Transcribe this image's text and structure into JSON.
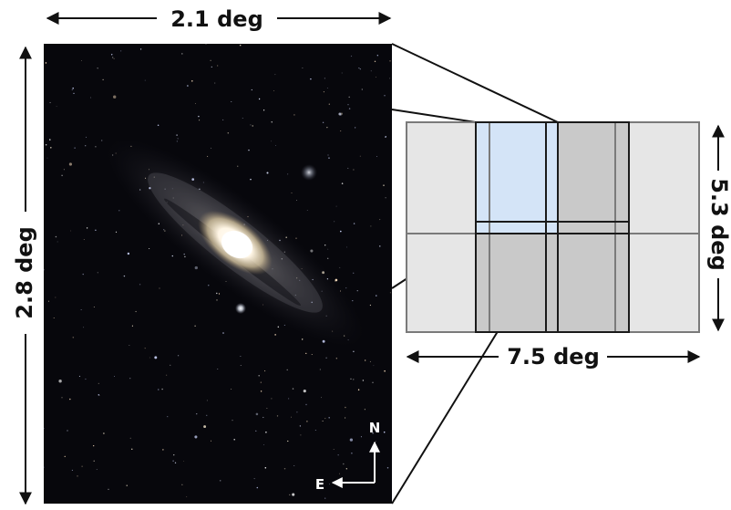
{
  "labels": {
    "image_width": "2.1 deg",
    "image_height": "2.8 deg",
    "mosaic_height": "5.3 deg",
    "mosaic_width": "7.5 deg"
  },
  "compass": {
    "north": "N",
    "east": "E"
  },
  "photo": {
    "subject": "Andromeda galaxy (M31) with companion galaxies"
  },
  "colors": {
    "sky": "#07070c",
    "mosaic_background": "#e6e6e6",
    "mosaic_overlap": "#c9c9c9",
    "selected_field": "#d4e4f7",
    "outline": "#1a1a1a",
    "grid_line": "#7a7a7a"
  }
}
